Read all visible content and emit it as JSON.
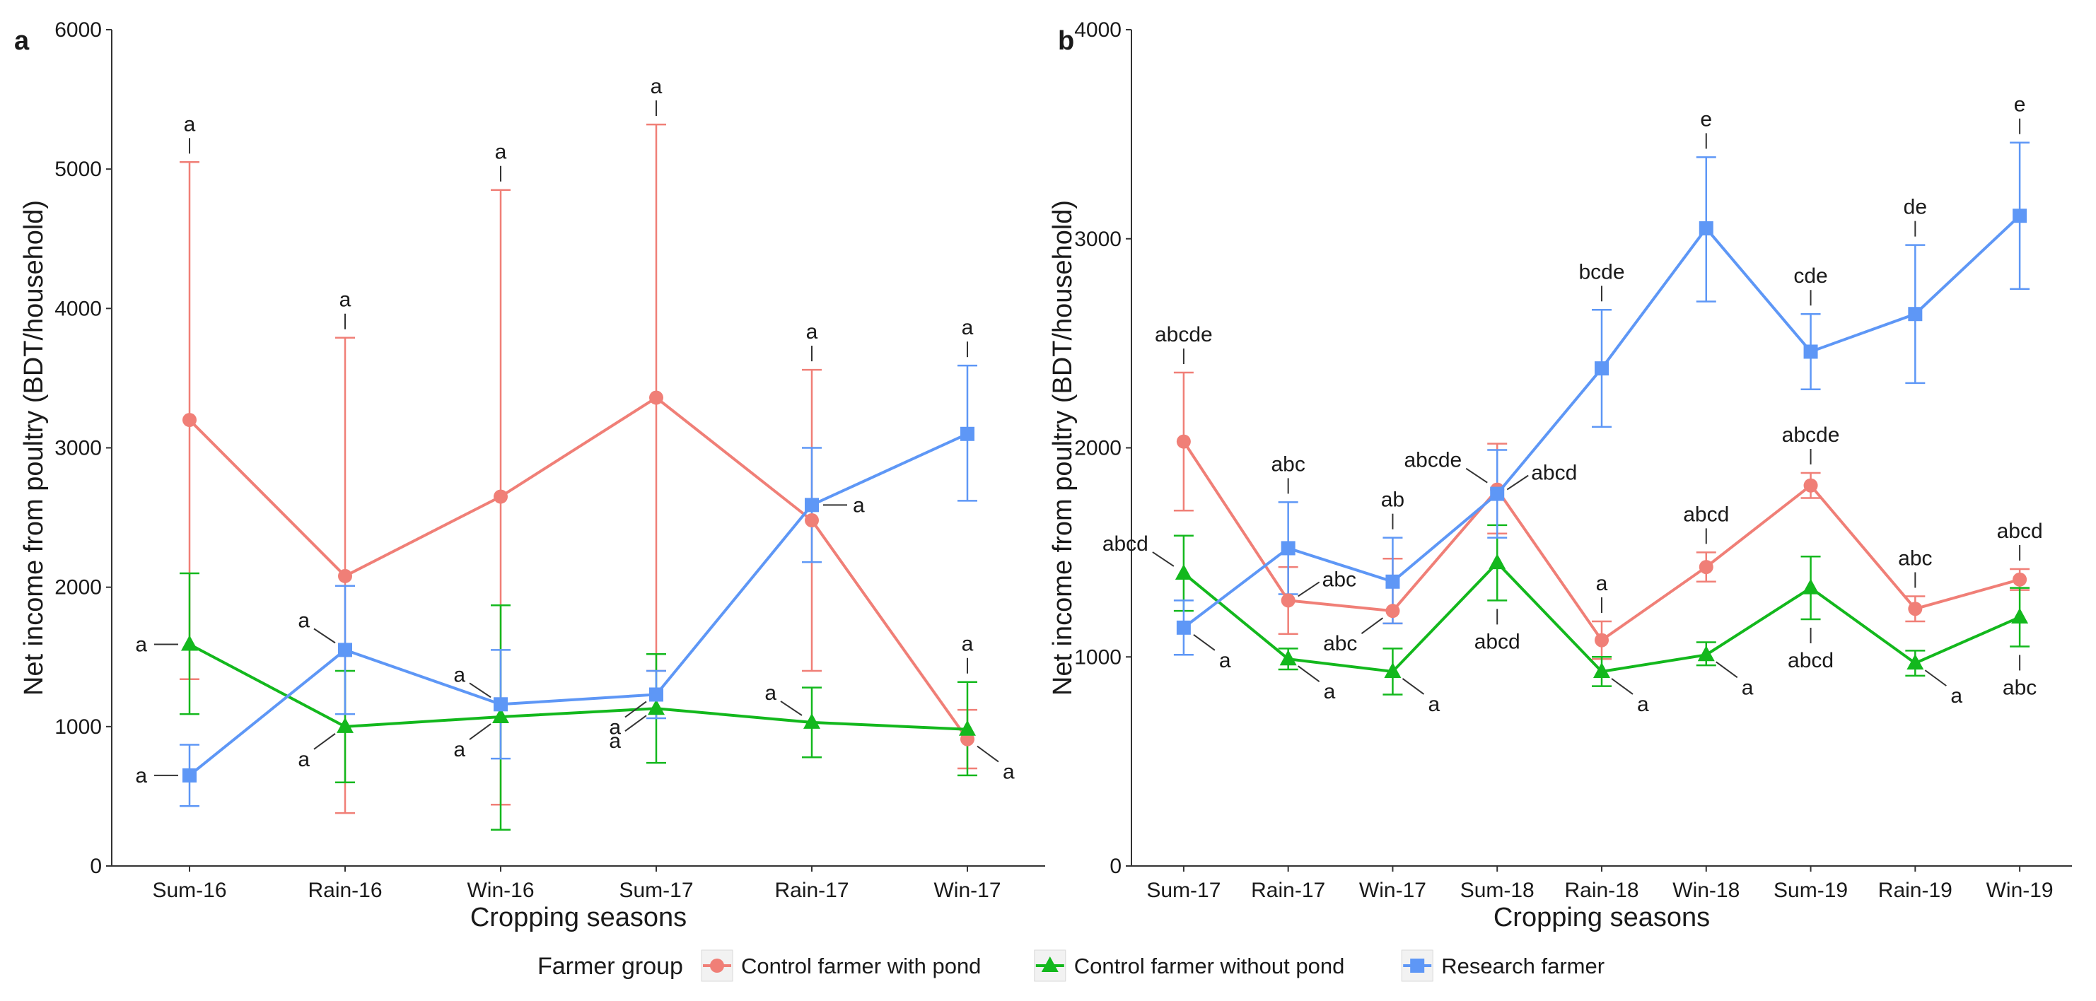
{
  "chart_data": [
    {
      "type": "line",
      "panel": "a",
      "xlabel": "Cropping seasons",
      "ylabel": "Net income from poultry (BDT/household)",
      "ylim": [
        0,
        6000
      ],
      "yticks": [
        0,
        1000,
        2000,
        3000,
        4000,
        5000,
        6000
      ],
      "categories": [
        "Sum-16",
        "Rain-16",
        "Win-16",
        "Sum-17",
        "Rain-17",
        "Win-17"
      ],
      "series": [
        {
          "name": "Control farmer with pond",
          "color": "#F07F77",
          "marker": "circle",
          "values": [
            3200,
            2080,
            2650,
            3360,
            2480,
            910
          ],
          "err_low": [
            1340,
            380,
            440,
            1400,
            1400,
            700
          ],
          "err_high": [
            5050,
            3790,
            4850,
            5320,
            3560,
            1120
          ],
          "labels": [
            "a",
            "a",
            "a",
            "a",
            "a",
            "a"
          ]
        },
        {
          "name": "Control farmer without pond",
          "color": "#13B81D",
          "marker": "triangle",
          "values": [
            1590,
            1000,
            1070,
            1130,
            1030,
            980
          ],
          "err_low": [
            1090,
            600,
            260,
            740,
            780,
            650
          ],
          "err_high": [
            2100,
            1400,
            1870,
            1520,
            1280,
            1320
          ],
          "labels": [
            "a",
            "a",
            "a",
            "a",
            "a",
            "a"
          ]
        },
        {
          "name": "Research farmer",
          "color": "#5E97F6",
          "marker": "square",
          "values": [
            650,
            1550,
            1160,
            1230,
            2590,
            3100
          ],
          "err_low": [
            430,
            1090,
            770,
            1060,
            2180,
            2620
          ],
          "err_high": [
            870,
            2010,
            1550,
            1400,
            3000,
            3590
          ],
          "labels": [
            "a",
            "a",
            "a",
            "a",
            "a",
            "a"
          ]
        }
      ]
    },
    {
      "type": "line",
      "panel": "b",
      "xlabel": "Cropping seasons",
      "ylabel": "Net income from poultry (BDT/household)",
      "ylim": [
        0,
        4000
      ],
      "yticks": [
        0,
        1000,
        2000,
        3000,
        4000
      ],
      "categories": [
        "Sum-17",
        "Rain-17",
        "Win-17",
        "Sum-18",
        "Rain-18",
        "Win-18",
        "Sum-19",
        "Rain-19",
        "Win-19"
      ],
      "series": [
        {
          "name": "Control farmer with pond",
          "color": "#F07F77",
          "marker": "circle",
          "values": [
            2030,
            1270,
            1220,
            1800,
            1080,
            1430,
            1820,
            1230,
            1370
          ],
          "err_low": [
            1700,
            1110,
            1160,
            1590,
            990,
            1360,
            1760,
            1170,
            1320
          ],
          "err_high": [
            2360,
            1430,
            1470,
            2020,
            1170,
            1500,
            1880,
            1290,
            1420
          ],
          "labels": [
            "abcde",
            "abc",
            "abc",
            "abcde",
            "a",
            "abcd",
            "abcde",
            "abc",
            "abcd"
          ]
        },
        {
          "name": "Control farmer without pond",
          "color": "#13B81D",
          "marker": "triangle",
          "values": [
            1400,
            990,
            930,
            1450,
            930,
            1010,
            1330,
            970,
            1190
          ],
          "err_low": [
            1220,
            940,
            820,
            1270,
            860,
            960,
            1180,
            910,
            1050
          ],
          "err_high": [
            1580,
            1040,
            1040,
            1630,
            1000,
            1070,
            1480,
            1030,
            1330
          ],
          "labels": [
            "abcd",
            "a",
            "a",
            "abcd",
            "a",
            "a",
            "abcd",
            "a",
            "abc"
          ]
        },
        {
          "name": "Research farmer",
          "color": "#5E97F6",
          "marker": "square",
          "values": [
            1140,
            1520,
            1360,
            1780,
            2380,
            3050,
            2460,
            2640,
            3110
          ],
          "err_low": [
            1010,
            1300,
            1160,
            1570,
            2100,
            2700,
            2280,
            2310,
            2760
          ],
          "err_high": [
            1270,
            1740,
            1570,
            1990,
            2660,
            3390,
            2640,
            2970,
            3460
          ],
          "labels": [
            "a",
            "abc",
            "ab",
            "abcd",
            "bcde",
            "e",
            "cde",
            "de",
            "e"
          ]
        }
      ]
    }
  ],
  "legend": {
    "title": "Farmer group",
    "items": [
      {
        "label": "Control farmer with pond",
        "color": "#F07F77",
        "marker": "circle"
      },
      {
        "label": "Control farmer without pond",
        "color": "#13B81D",
        "marker": "triangle"
      },
      {
        "label": "Research farmer",
        "color": "#5E97F6",
        "marker": "square"
      }
    ]
  }
}
